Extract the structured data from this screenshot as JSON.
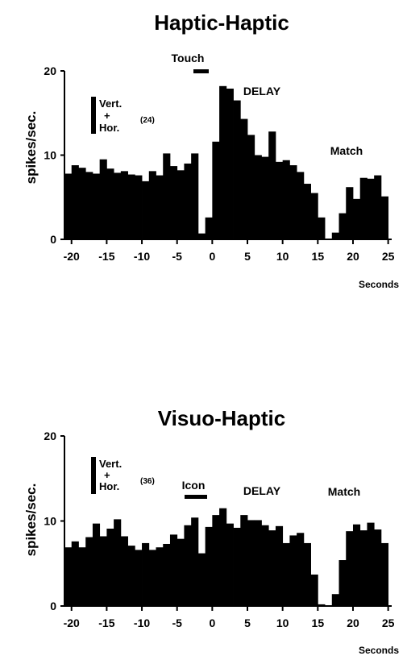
{
  "chart_data": [
    {
      "type": "bar",
      "title": "Haptic-Haptic",
      "ylabel": "spikes/sec.",
      "xlabel": "Seconds",
      "xlim": [
        -21.0,
        25.5
      ],
      "ylim": [
        0,
        20
      ],
      "yticks": [
        0,
        10,
        20
      ],
      "xticks": [
        -20,
        -15,
        -10,
        -5,
        0,
        5,
        10,
        15,
        20,
        25
      ],
      "bin_width": 1,
      "bin_starts": [
        -21,
        -20,
        -19,
        -18,
        -17,
        -16,
        -15,
        -14,
        -13,
        -12,
        -11,
        -10,
        -9,
        -8,
        -7,
        -6,
        -5,
        -4,
        -3,
        -2,
        -1,
        0,
        1,
        2,
        3,
        4,
        5,
        6,
        7,
        8,
        9,
        10,
        11,
        12,
        13,
        14,
        15,
        16,
        17,
        18,
        19,
        20,
        21,
        22,
        23,
        24
      ],
      "values": [
        7.8,
        8.8,
        8.5,
        8.0,
        7.8,
        9.5,
        8.4,
        7.9,
        8.1,
        7.7,
        7.6,
        6.9,
        8.1,
        7.6,
        10.2,
        8.7,
        8.2,
        9.0,
        10.2,
        0.7,
        2.6,
        11.6,
        18.2,
        17.9,
        16.5,
        14.3,
        12.4,
        10.0,
        9.8,
        12.8,
        9.2,
        9.4,
        8.8,
        8.0,
        6.6,
        5.5,
        2.6,
        0.0,
        0.8,
        3.1,
        6.2,
        4.8,
        7.3,
        7.2,
        7.6,
        5.1
      ],
      "annotations": {
        "stimulus": "Touch",
        "delay": "DELAY",
        "match": "Match"
      },
      "legend": {
        "vert": "Vert.",
        "plus": "+",
        "hor": "Hor.",
        "n": "(24)"
      }
    },
    {
      "type": "bar",
      "title": "Visuo-Haptic",
      "ylabel": "spikes/sec.",
      "xlabel": "Seconds",
      "xlim": [
        -21.0,
        25.5
      ],
      "ylim": [
        0,
        20
      ],
      "yticks": [
        0,
        10,
        20
      ],
      "xticks": [
        -20,
        -15,
        -10,
        -5,
        0,
        5,
        10,
        15,
        20,
        25
      ],
      "bin_width": 1,
      "bin_starts": [
        -21,
        -20,
        -19,
        -18,
        -17,
        -16,
        -15,
        -14,
        -13,
        -12,
        -11,
        -10,
        -9,
        -8,
        -7,
        -6,
        -5,
        -4,
        -3,
        -2,
        -1,
        0,
        1,
        2,
        3,
        4,
        5,
        6,
        7,
        8,
        9,
        10,
        11,
        12,
        13,
        14,
        15,
        16,
        17,
        18,
        19,
        20,
        21,
        22,
        23,
        24
      ],
      "values": [
        6.9,
        7.6,
        6.9,
        8.1,
        9.7,
        8.2,
        9.1,
        10.2,
        8.2,
        7.1,
        6.6,
        7.4,
        6.6,
        6.9,
        7.3,
        8.4,
        7.9,
        9.5,
        10.4,
        6.2,
        9.3,
        10.7,
        11.5,
        9.7,
        9.2,
        10.7,
        10.1,
        10.1,
        9.5,
        8.9,
        9.4,
        7.4,
        8.3,
        8.6,
        7.4,
        3.7,
        0.2,
        0.0,
        1.4,
        5.4,
        8.8,
        9.6,
        8.9,
        9.8,
        9.0,
        7.4
      ],
      "annotations": {
        "stimulus": "Icon",
        "delay": "DELAY",
        "match": "Match"
      },
      "legend": {
        "vert": "Vert.",
        "plus": "+",
        "hor": "Hor.",
        "n": "(36)"
      }
    }
  ]
}
